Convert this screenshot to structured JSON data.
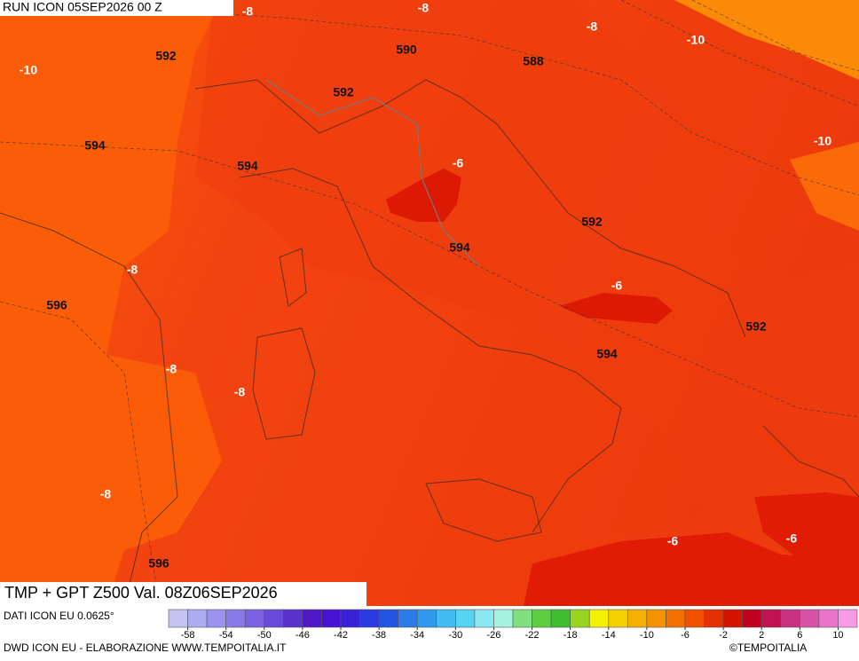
{
  "header": {
    "run": "RUN ICON 05SEP2026 00 Z"
  },
  "map": {
    "contour_labels": [
      -8,
      -8,
      -8,
      -10,
      -10,
      592,
      590,
      588,
      592,
      594,
      594,
      -10,
      -6,
      592,
      594,
      -8,
      596,
      -6,
      592,
      594,
      -8,
      -8,
      -8,
      -6,
      -6,
      596
    ]
  },
  "footer": {
    "title": "TMP + GPT Z500 Val. 08Z06SEP2026",
    "source": "DATI ICON EU 0.0625°",
    "credit": "DWD ICON EU - ELABORAZIONE WWW.TEMPOITALIA.IT",
    "logo": "©TEMPOITALIA"
  },
  "colorbar": {
    "lim": [
      -60,
      12
    ],
    "ticks": [
      -58,
      -54,
      -50,
      -46,
      -42,
      -38,
      -34,
      -30,
      -26,
      -22,
      -18,
      -14,
      -10,
      -6,
      -2,
      2,
      6,
      10
    ],
    "colors": [
      "#c4c4f2",
      "#acacf0",
      "#9a92ee",
      "#8a7ae8",
      "#7a62e0",
      "#6a4ad8",
      "#5a32cc",
      "#5018c4",
      "#4812d2",
      "#3822d8",
      "#283ae0",
      "#2254e2",
      "#2a7ae8",
      "#329aee",
      "#42bcf2",
      "#56d4f2",
      "#8ae8f0",
      "#a8f2e0",
      "#80e080",
      "#5cce40",
      "#3ebe30",
      "#98d420",
      "#f4f000",
      "#f4d000",
      "#f4b000",
      "#f49200",
      "#f27200",
      "#f05200",
      "#e23000",
      "#d21400",
      "#c00020",
      "#c01250",
      "#c83280",
      "#d852a8",
      "#ea74ca",
      "#f89ae6"
    ]
  }
}
